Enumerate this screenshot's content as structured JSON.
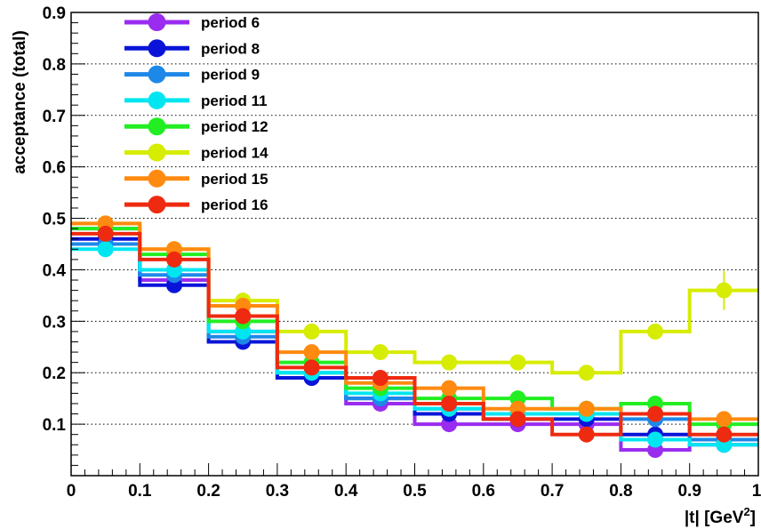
{
  "chart_data": {
    "type": "line",
    "title": "",
    "xlabel_main": "|t| [GeV",
    "xlabel_sup": "2",
    "xlabel_end": "]",
    "ylabel": "acceptance (total)",
    "xlim": [
      0,
      1
    ],
    "ylim": [
      0,
      0.9
    ],
    "x_ticks": [
      "0",
      "0.1",
      "0.2",
      "0.3",
      "0.4",
      "0.5",
      "0.6",
      "0.7",
      "0.8",
      "0.9",
      "1"
    ],
    "y_ticks": [
      "0.1",
      "0.2",
      "0.3",
      "0.4",
      "0.5",
      "0.6",
      "0.7",
      "0.8",
      "0.9"
    ],
    "grid": "horizontal dotted",
    "legend": "top-left",
    "bin_edges": [
      0,
      0.1,
      0.2,
      0.3,
      0.4,
      0.5,
      0.6,
      0.7,
      0.8,
      0.9,
      1.0
    ],
    "x": [
      0.05,
      0.15,
      0.25,
      0.35,
      0.45,
      0.55,
      0.65,
      0.75,
      0.85,
      0.95
    ],
    "series": [
      {
        "name": "period 6",
        "color": "#9a2cf0",
        "values": [
          0.48,
          0.38,
          0.28,
          0.19,
          0.14,
          0.1,
          0.1,
          0.1,
          0.05,
          0.06
        ]
      },
      {
        "name": "period 8",
        "color": "#0a14d8",
        "values": [
          0.46,
          0.37,
          0.26,
          0.19,
          0.15,
          0.12,
          0.11,
          0.11,
          0.08,
          0.07
        ]
      },
      {
        "name": "period 9",
        "color": "#1e88e8",
        "values": [
          0.45,
          0.39,
          0.27,
          0.2,
          0.15,
          0.13,
          0.12,
          0.12,
          0.11,
          0.07
        ]
      },
      {
        "name": "period 11",
        "color": "#00e6f0",
        "values": [
          0.44,
          0.4,
          0.28,
          0.2,
          0.16,
          0.13,
          0.12,
          0.12,
          0.07,
          0.06
        ]
      },
      {
        "name": "period 12",
        "color": "#22ee22",
        "values": [
          0.48,
          0.43,
          0.3,
          0.22,
          0.17,
          0.15,
          0.15,
          0.13,
          0.14,
          0.1
        ]
      },
      {
        "name": "period 14",
        "color": "#d6ec00",
        "values": [
          0.49,
          0.44,
          0.34,
          0.28,
          0.24,
          0.22,
          0.22,
          0.2,
          0.28,
          0.36
        ]
      },
      {
        "name": "period 15",
        "color": "#ff8a10",
        "values": [
          0.49,
          0.44,
          0.33,
          0.24,
          0.18,
          0.17,
          0.13,
          0.13,
          0.12,
          0.11
        ]
      },
      {
        "name": "period 16",
        "color": "#ee2a10",
        "values": [
          0.47,
          0.42,
          0.31,
          0.21,
          0.19,
          0.14,
          0.11,
          0.08,
          0.12,
          0.08
        ]
      }
    ]
  }
}
